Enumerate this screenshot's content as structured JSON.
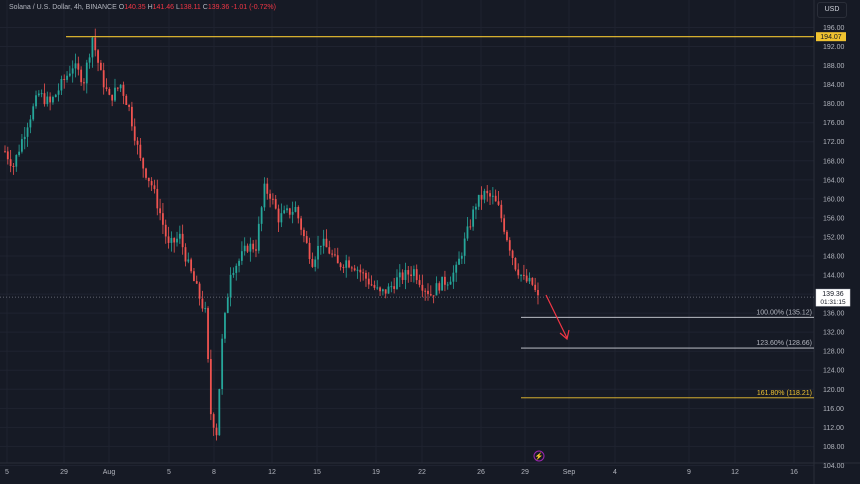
{
  "header": {
    "symbol": "Solana / U.S. Dollar, 4h, BINANCE",
    "o_label": "O",
    "o_value": "140.35",
    "h_label": "H",
    "h_value": "141.46",
    "l_label": "L",
    "l_value": "138.11",
    "c_label": "C",
    "c_value": "139.36",
    "change": "-1.01 (-0.72%)"
  },
  "axis": {
    "currency": "USD"
  },
  "price_labels": {
    "high_line": "194.07",
    "last_price": "139.36",
    "countdown": "01:31:15"
  },
  "colors": {
    "background": "#161a25",
    "bull": "#26a69a",
    "bear": "#ef5350",
    "high_line": "#f0c330",
    "fib_line": "#d1d4dc",
    "fib_gold": "#f0c330",
    "arrow": "#f23645",
    "event_icon": "#9c27b0"
  },
  "chart_data": {
    "type": "candlestick",
    "title": "Solana / U.S. Dollar, 4h, BINANCE",
    "ylim": [
      102,
      198
    ],
    "yticks": [
      104,
      108,
      112,
      116,
      120,
      124,
      128,
      132,
      136,
      140,
      144,
      148,
      152,
      156,
      160,
      164,
      168,
      172,
      176,
      180,
      184,
      188,
      192,
      196
    ],
    "xticks": [
      "5",
      "29",
      "Aug",
      "5",
      "8",
      "12",
      "15",
      "19",
      "22",
      "26",
      "29",
      "Sep",
      "4",
      "9",
      "12",
      "16"
    ],
    "path_points": [
      [
        0,
        170
      ],
      [
        3,
        167
      ],
      [
        8,
        176
      ],
      [
        12,
        182
      ],
      [
        16,
        180
      ],
      [
        20,
        184
      ],
      [
        24,
        188
      ],
      [
        28,
        185
      ],
      [
        31,
        194
      ],
      [
        34,
        186
      ],
      [
        37,
        181
      ],
      [
        41,
        184
      ],
      [
        44,
        179
      ],
      [
        48,
        168
      ],
      [
        52,
        163
      ],
      [
        55,
        157
      ],
      [
        58,
        150
      ],
      [
        62,
        152
      ],
      [
        65,
        146
      ],
      [
        68,
        141
      ],
      [
        71,
        136
      ],
      [
        73,
        115
      ],
      [
        75,
        111
      ],
      [
        77,
        130
      ],
      [
        80,
        145
      ],
      [
        83,
        147
      ],
      [
        86,
        150
      ],
      [
        89,
        150
      ],
      [
        92,
        162
      ],
      [
        94,
        161
      ],
      [
        97,
        156
      ],
      [
        100,
        157
      ],
      [
        103,
        158
      ],
      [
        106,
        152
      ],
      [
        109,
        147
      ],
      [
        112,
        151
      ],
      [
        115,
        149
      ],
      [
        118,
        146
      ],
      [
        121,
        147
      ],
      [
        124,
        146
      ],
      [
        127,
        144
      ],
      [
        130,
        142
      ],
      [
        133,
        140
      ],
      [
        136,
        141
      ],
      [
        139,
        143
      ],
      [
        142,
        144
      ],
      [
        145,
        145
      ],
      [
        148,
        142
      ],
      [
        151,
        140
      ],
      [
        154,
        142
      ],
      [
        157,
        143
      ],
      [
        160,
        145
      ],
      [
        164,
        153
      ],
      [
        167,
        159
      ],
      [
        170,
        161
      ],
      [
        173,
        160
      ],
      [
        175,
        158
      ],
      [
        178,
        152
      ],
      [
        181,
        146
      ],
      [
        184,
        143
      ],
      [
        187,
        142
      ],
      [
        189,
        139
      ]
    ],
    "high_line": 194.07,
    "last_price": 139.36,
    "fib_levels": [
      {
        "label": "100.00% (135.12)",
        "value": 135.12
      },
      {
        "label": "123.60% (128.66)",
        "value": 128.66
      },
      {
        "label": "161.80% (118.21)",
        "value": 118.21
      }
    ],
    "grid": true
  }
}
